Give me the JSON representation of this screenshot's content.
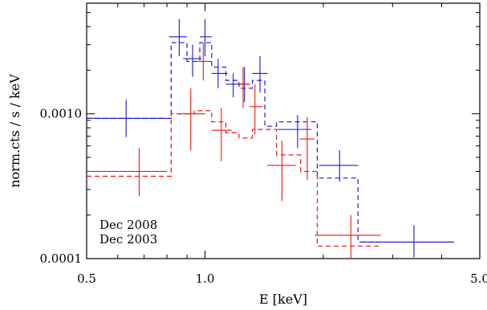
{
  "chart_data": {
    "type": "step-spectrum",
    "xlabel": "E [keV]",
    "ylabel": "norm.cts / s / keV",
    "x_scale": "log",
    "y_scale": "log",
    "xlim": [
      0.5,
      5.0
    ],
    "ylim": [
      0.0001,
      0.0058
    ],
    "x_ticks": [
      {
        "value": 0.5,
        "label": "0.5"
      },
      {
        "value": 1.0,
        "label": "1.0"
      },
      {
        "value": 5.0,
        "label": "5.0"
      }
    ],
    "y_ticks": [
      {
        "value": 0.0001,
        "label": "0.0001"
      },
      {
        "value": 0.001,
        "label": "0.0010"
      }
    ],
    "grid": false,
    "legend_position": "bottom-left",
    "series": [
      {
        "name": "Dec 2008",
        "color": "#1a1acc",
        "points": [
          {
            "x": 0.63,
            "xlo": 0.5,
            "xhi": 0.8,
            "y": 0.00093,
            "ylo": 0.00069,
            "yhi": 0.00125
          },
          {
            "x": 0.86,
            "xlo": 0.81,
            "xhi": 0.9,
            "y": 0.0034,
            "ylo": 0.0025,
            "yhi": 0.0045
          },
          {
            "x": 0.93,
            "xlo": 0.88,
            "xhi": 0.98,
            "y": 0.0024,
            "ylo": 0.0018,
            "yhi": 0.003
          },
          {
            "x": 1.0,
            "xlo": 0.97,
            "xhi": 1.04,
            "y": 0.0034,
            "ylo": 0.0025,
            "yhi": 0.0045
          },
          {
            "x": 1.08,
            "xlo": 1.04,
            "xhi": 1.14,
            "y": 0.0019,
            "ylo": 0.0015,
            "yhi": 0.0024
          },
          {
            "x": 1.18,
            "xlo": 1.13,
            "xhi": 1.24,
            "y": 0.0016,
            "ylo": 0.0013,
            "yhi": 0.0019
          },
          {
            "x": 1.26,
            "xlo": 1.2,
            "xhi": 1.3,
            "y": 0.0016,
            "ylo": 0.0012,
            "yhi": 0.0021
          },
          {
            "x": 1.38,
            "xlo": 1.32,
            "xhi": 1.44,
            "y": 0.0019,
            "ylo": 0.0014,
            "yhi": 0.0025
          },
          {
            "x": 1.72,
            "xlo": 1.53,
            "xhi": 1.86,
            "y": 0.00078,
            "ylo": 0.00058,
            "yhi": 0.00098
          },
          {
            "x": 2.2,
            "xlo": 1.95,
            "xhi": 2.45,
            "y": 0.00044,
            "ylo": 0.00034,
            "yhi": 0.00056
          },
          {
            "x": 3.4,
            "xlo": 2.5,
            "xhi": 4.3,
            "y": 0.00013,
            "ylo": 0.000102,
            "yhi": 0.00017
          }
        ],
        "model": [
          {
            "x0": 0.5,
            "x1": 0.82,
            "y": 0.00093
          },
          {
            "x0": 0.82,
            "x1": 0.9,
            "y": 0.0031
          },
          {
            "x0": 0.9,
            "x1": 0.97,
            "y": 0.0023
          },
          {
            "x0": 0.97,
            "x1": 1.04,
            "y": 0.0031
          },
          {
            "x0": 1.04,
            "x1": 1.13,
            "y": 0.0021
          },
          {
            "x0": 1.13,
            "x1": 1.22,
            "y": 0.0017
          },
          {
            "x0": 1.22,
            "x1": 1.32,
            "y": 0.0015
          },
          {
            "x0": 1.32,
            "x1": 1.42,
            "y": 0.0017
          },
          {
            "x0": 1.42,
            "x1": 1.52,
            "y": 0.00082
          },
          {
            "x0": 1.52,
            "x1": 1.93,
            "y": 0.00088
          },
          {
            "x0": 1.93,
            "x1": 2.45,
            "y": 0.00036
          },
          {
            "x0": 2.45,
            "x1": 4.3,
            "y": 0.00013
          }
        ]
      },
      {
        "name": "Dec 2003",
        "color": "#e81818",
        "points": [
          {
            "x": 0.68,
            "xlo": 0.5,
            "xhi": 0.8,
            "y": 0.0004,
            "ylo": 0.00027,
            "yhi": 0.00058
          },
          {
            "x": 0.92,
            "xlo": 0.85,
            "xhi": 1.0,
            "y": 0.001,
            "ylo": 0.00056,
            "yhi": 0.0015
          },
          {
            "x": 0.99,
            "xlo": 0.96,
            "xhi": 1.04,
            "y": 0.0023,
            "ylo": 0.0017,
            "yhi": 0.0031
          },
          {
            "x": 1.1,
            "xlo": 1.04,
            "xhi": 1.17,
            "y": 0.00077,
            "ylo": 0.00047,
            "yhi": 0.0011
          },
          {
            "x": 1.25,
            "xlo": 1.2,
            "xhi": 1.3,
            "y": 0.0016,
            "ylo": 0.0011,
            "yhi": 0.0021
          },
          {
            "x": 1.34,
            "xlo": 1.3,
            "xhi": 1.4,
            "y": 0.00112,
            "ylo": 0.00072,
            "yhi": 0.0016
          },
          {
            "x": 1.57,
            "xlo": 1.44,
            "xhi": 1.7,
            "y": 0.00044,
            "ylo": 0.00025,
            "yhi": 0.00065
          },
          {
            "x": 1.82,
            "xlo": 1.74,
            "xhi": 1.9,
            "y": 0.00067,
            "ylo": 0.00035,
            "yhi": 0.00095
          },
          {
            "x": 2.35,
            "xlo": 1.9,
            "xhi": 2.8,
            "y": 0.000145,
            "ylo": 0.0001,
            "yhi": 0.0002
          }
        ],
        "model": [
          {
            "x0": 0.5,
            "x1": 0.82,
            "y": 0.00037
          },
          {
            "x0": 0.82,
            "x1": 0.94,
            "y": 0.001
          },
          {
            "x0": 0.94,
            "x1": 1.04,
            "y": 0.00105
          },
          {
            "x0": 1.04,
            "x1": 1.13,
            "y": 0.00088
          },
          {
            "x0": 1.13,
            "x1": 1.22,
            "y": 0.00074
          },
          {
            "x0": 1.22,
            "x1": 1.32,
            "y": 0.00068
          },
          {
            "x0": 1.32,
            "x1": 1.52,
            "y": 0.00078
          },
          {
            "x0": 1.52,
            "x1": 1.75,
            "y": 0.00052
          },
          {
            "x0": 1.75,
            "x1": 1.93,
            "y": 0.0004
          },
          {
            "x0": 1.93,
            "x1": 2.8,
            "y": 0.000122
          }
        ]
      }
    ]
  }
}
